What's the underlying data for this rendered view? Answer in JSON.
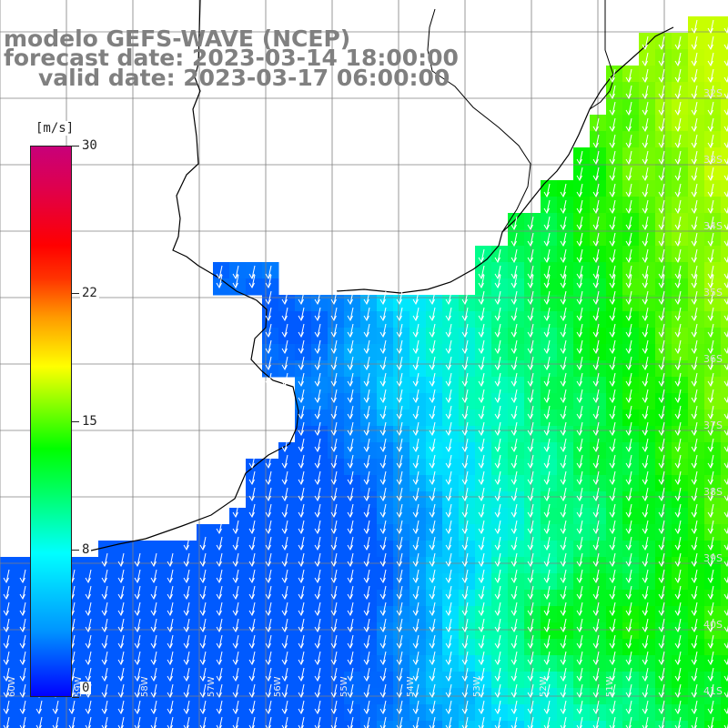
{
  "title": {
    "line1": "modelo GEFS-WAVE (NCEP)",
    "line2": "forecast date: 2023-03-14 18:00:00",
    "line3": "valid date: 2023-03-17 06:00:00"
  },
  "colorbar": {
    "unit": "[m/s]",
    "min": 0,
    "max": 30,
    "tick_labels": [
      "30",
      "22",
      "15",
      "8",
      "0"
    ],
    "tick_values": [
      30,
      22,
      15,
      8,
      0
    ],
    "colors": [
      "#0000ff",
      "#0096ff",
      "#00ffff",
      "#00ff66",
      "#00ff00",
      "#aaff00",
      "#ffff00",
      "#ff9900",
      "#ff0000",
      "#c8007a"
    ]
  },
  "lat_labels": [
    "32S",
    "33S",
    "34S",
    "35S",
    "36S",
    "37S",
    "38S",
    "39S",
    "40S",
    "41S"
  ],
  "lon_labels": [
    "60W",
    "59W",
    "58W",
    "57W",
    "56W",
    "55W",
    "54W",
    "53W",
    "52W",
    "51W"
  ],
  "colors": {
    "land": "#ffffff",
    "coast": "#000000",
    "grid": "#808080",
    "arrow": "#ffffff",
    "title": "#808080"
  },
  "field": {
    "description_units": "m/s",
    "arrow_direction": "toward south / south-southwest"
  }
}
